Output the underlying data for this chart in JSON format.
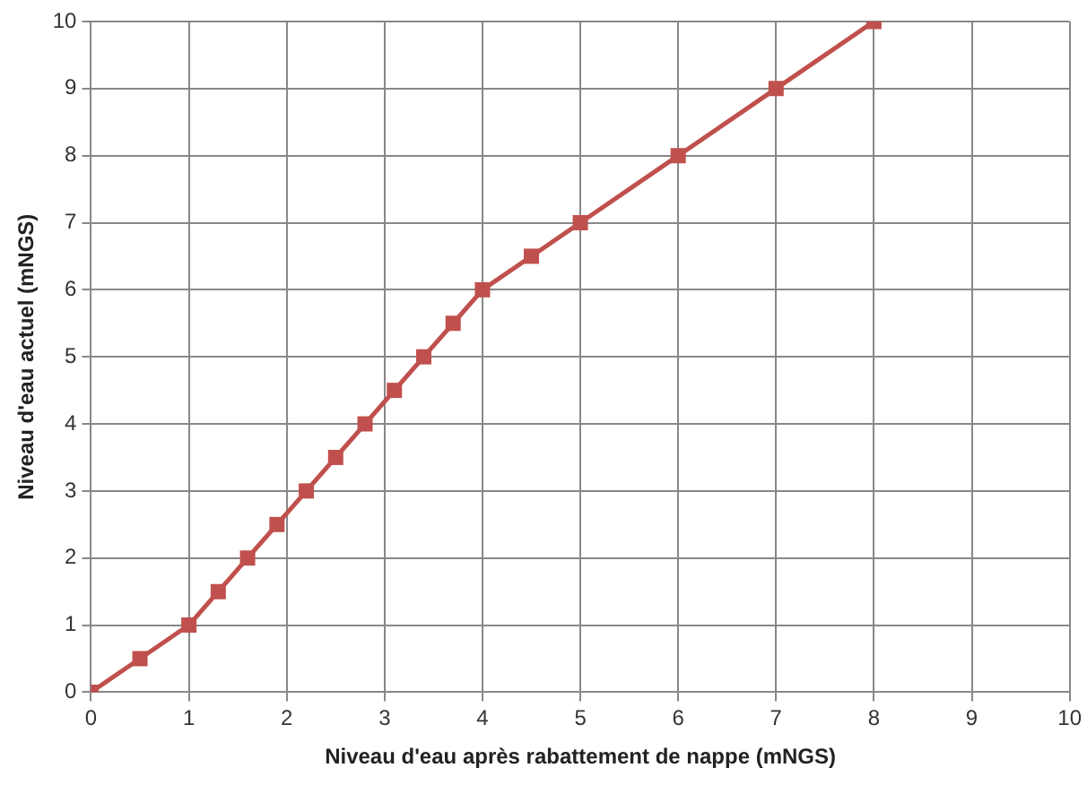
{
  "chart_data": {
    "type": "line",
    "xlabel": "Niveau d'eau après rabattement de nappe (mNGS)",
    "ylabel": "Niveau d'eau actuel (mNGS)",
    "x": [
      0,
      0.5,
      1,
      1.3,
      1.6,
      1.9,
      2.2,
      2.5,
      2.8,
      3.1,
      3.4,
      3.7,
      4,
      4.5,
      5,
      6,
      7,
      8
    ],
    "series": [
      {
        "color": "#c0504d",
        "values": [
          0,
          0.5,
          1,
          1.5,
          2,
          2.5,
          3,
          3.5,
          4,
          4.5,
          5,
          5.5,
          6,
          6.5,
          7,
          8,
          9,
          10
        ]
      }
    ],
    "xlim": [
      0,
      10
    ],
    "xticks": [
      0,
      1,
      2,
      3,
      4,
      5,
      6,
      7,
      8,
      9,
      10
    ],
    "ylim": [
      0,
      10
    ],
    "yticks": [
      0,
      1,
      2,
      3,
      4,
      5,
      6,
      7,
      8,
      9,
      10
    ],
    "grid": true,
    "legend": false,
    "marker": "square",
    "line_style": "solid"
  }
}
